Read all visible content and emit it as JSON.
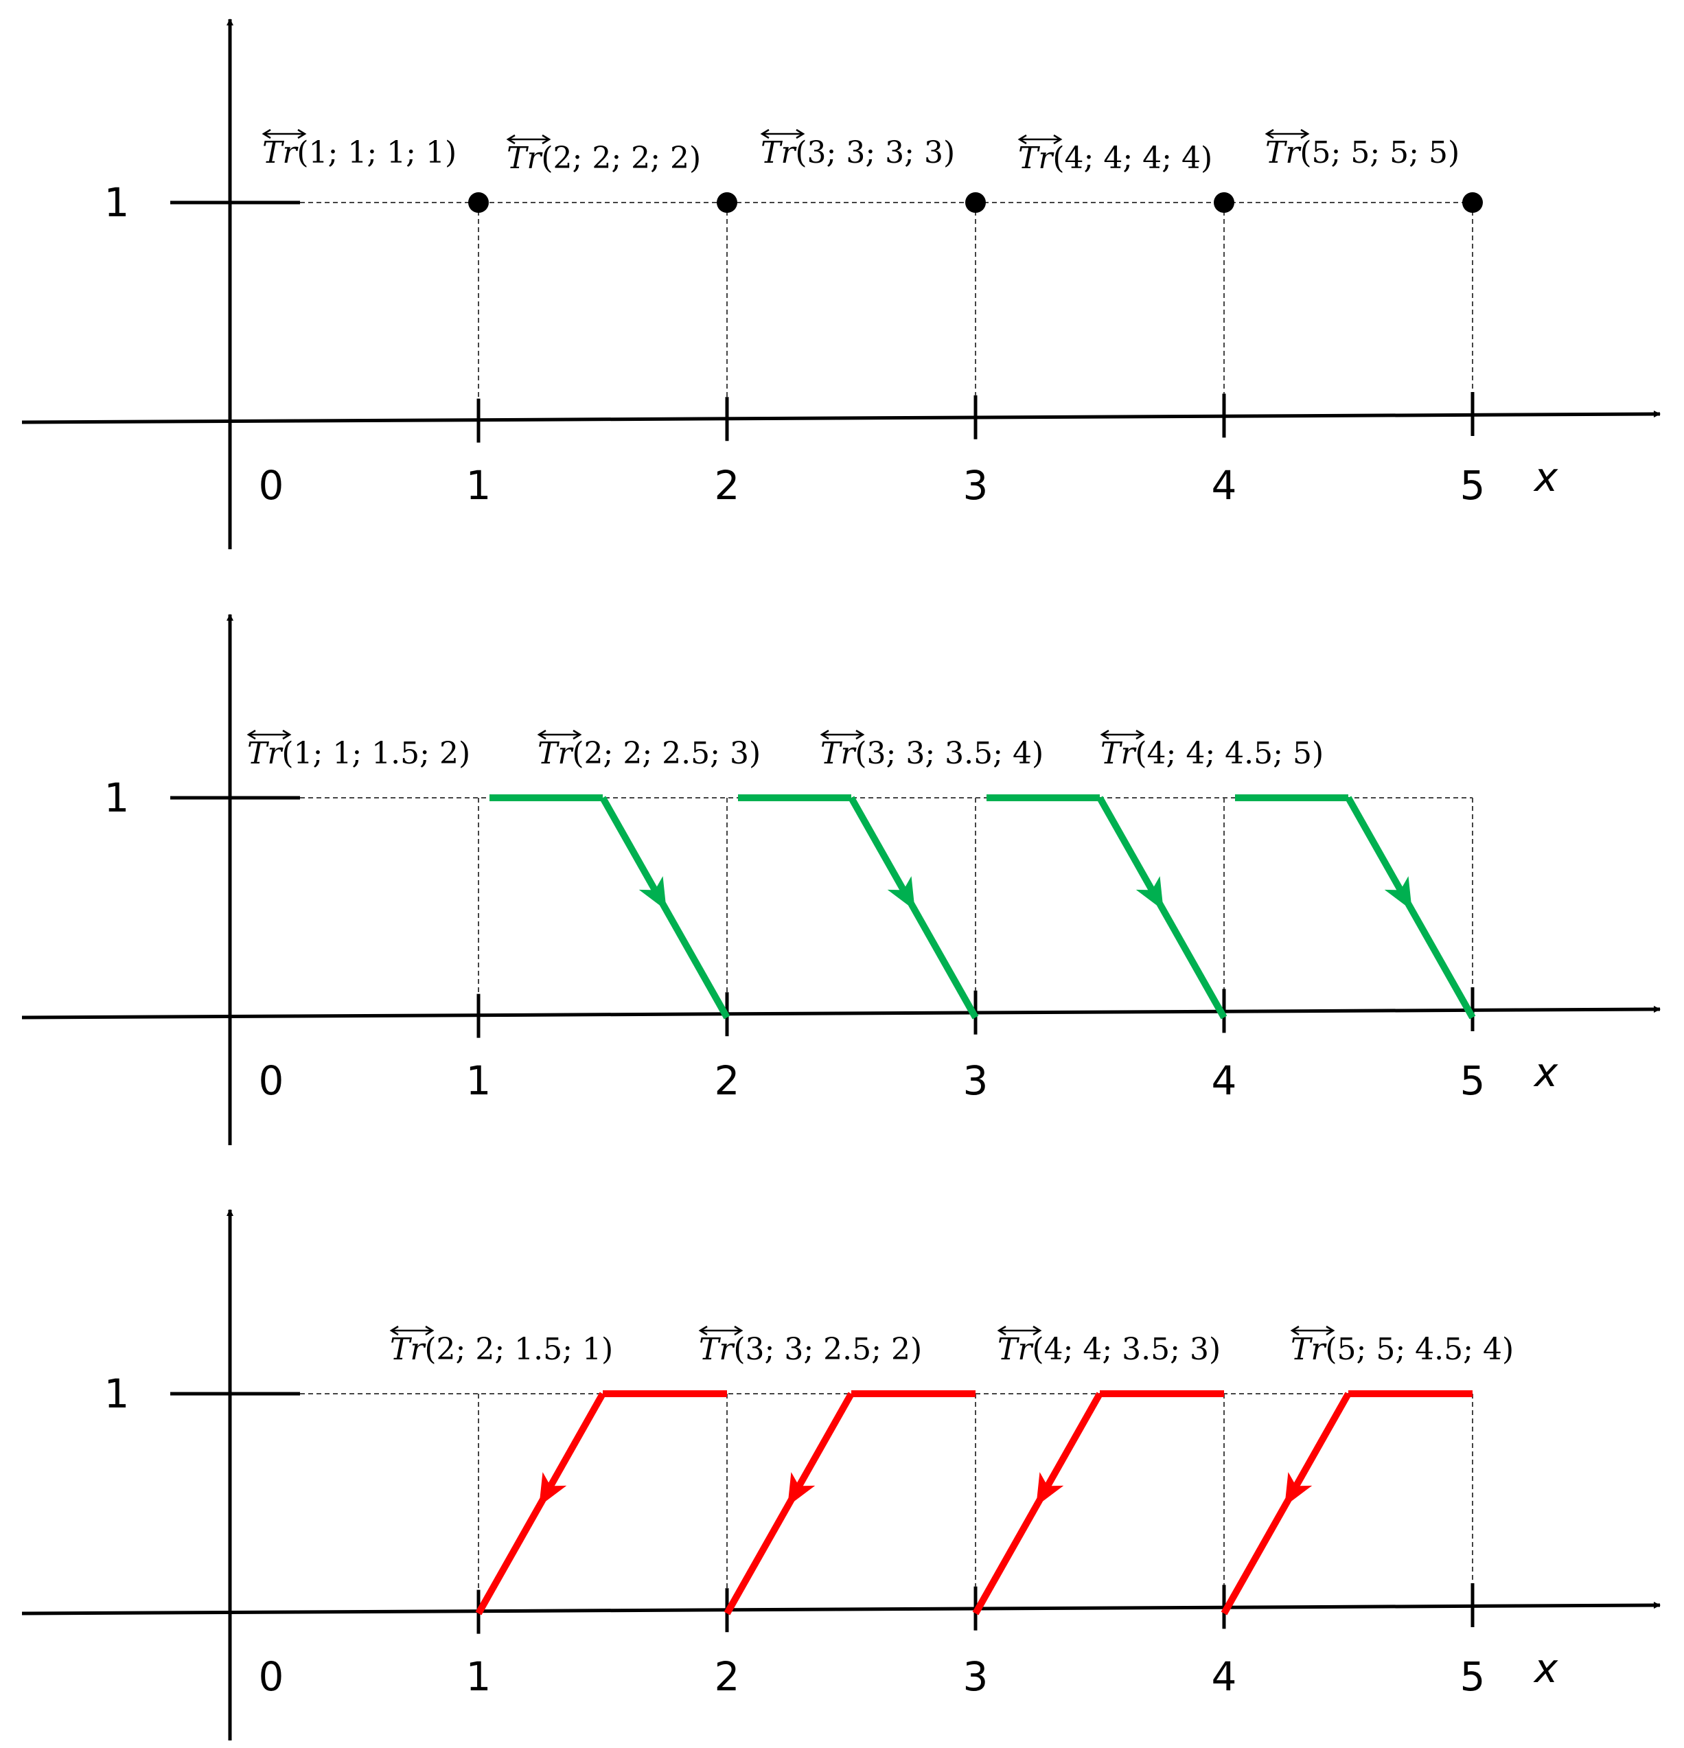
{
  "panels": [
    {
      "kind": "point",
      "color": "#000000",
      "x_label": "x",
      "y_tick_label": "1",
      "x_tick_labels": [
        "0",
        "1",
        "2",
        "3",
        "4",
        "5"
      ],
      "numbers": [
        {
          "name": "Tr",
          "args": "(1; 1; 1; 1)",
          "values": [
            1,
            1,
            1,
            1
          ]
        },
        {
          "name": "Tr",
          "args": "(2; 2; 2; 2)",
          "values": [
            2,
            2,
            2,
            2
          ]
        },
        {
          "name": "Tr",
          "args": "(3; 3; 3; 3)",
          "values": [
            3,
            3,
            3,
            3
          ]
        },
        {
          "name": "Tr",
          "args": "(4; 4; 4; 4)",
          "values": [
            4,
            4,
            4,
            4
          ]
        },
        {
          "name": "Tr",
          "args": "(5; 5; 5; 5)",
          "values": [
            5,
            5,
            5,
            5
          ]
        }
      ]
    },
    {
      "kind": "decreasing",
      "color": "#00b050",
      "x_label": "x",
      "y_tick_label": "1",
      "x_tick_labels": [
        "0",
        "1",
        "2",
        "3",
        "4",
        "5"
      ],
      "numbers": [
        {
          "name": "Tr",
          "args": "(1; 1; 1.5; 2)",
          "values": [
            1,
            1,
            1.5,
            2
          ]
        },
        {
          "name": "Tr",
          "args": "(2; 2; 2.5; 3)",
          "values": [
            2,
            2,
            2.5,
            3
          ]
        },
        {
          "name": "Tr",
          "args": "(3; 3; 3.5; 4)",
          "values": [
            3,
            3,
            3.5,
            4
          ]
        },
        {
          "name": "Tr",
          "args": "(4; 4; 4.5; 5)",
          "values": [
            4,
            4,
            4.5,
            5
          ]
        }
      ]
    },
    {
      "kind": "increasing",
      "color": "#ff0000",
      "x_label": "x",
      "y_tick_label": "1",
      "x_tick_labels": [
        "0",
        "1",
        "2",
        "3",
        "4",
        "5"
      ],
      "numbers": [
        {
          "name": "Tr",
          "args": "(2; 2; 1.5; 1)",
          "values": [
            2,
            2,
            1.5,
            1
          ]
        },
        {
          "name": "Tr",
          "args": "(3; 3; 2.5; 2)",
          "values": [
            3,
            3,
            2.5,
            2
          ]
        },
        {
          "name": "Tr",
          "args": "(4; 4; 3.5; 3)",
          "values": [
            4,
            4,
            3.5,
            3
          ]
        },
        {
          "name": "Tr",
          "args": "(5; 5; 4.5; 4)",
          "values": [
            5,
            5,
            4.5,
            4
          ]
        }
      ]
    }
  ]
}
